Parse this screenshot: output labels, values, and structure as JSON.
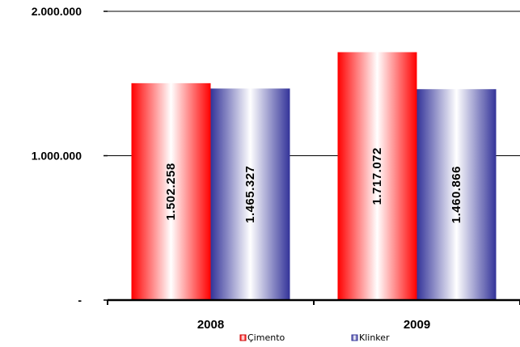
{
  "chart_data": {
    "type": "bar",
    "categories": [
      "2008",
      "2009"
    ],
    "series": [
      {
        "name": "Çimento",
        "values": [
          1502258,
          1717072
        ],
        "labels": [
          "1.502.258",
          "1.717.072"
        ],
        "color": "#ff0000"
      },
      {
        "name": "Klinker",
        "values": [
          1465327,
          1460866
        ],
        "labels": [
          "1.465.327",
          "1.460.866"
        ],
        "color": "#333399"
      }
    ],
    "ylim": [
      0,
      2000000
    ],
    "y_ticks": [
      {
        "value": 0,
        "label": "-"
      },
      {
        "value": 1000000,
        "label": "1.000.000"
      },
      {
        "value": 2000000,
        "label": "2.000.000"
      }
    ],
    "grid": true,
    "legend_position": "bottom"
  }
}
